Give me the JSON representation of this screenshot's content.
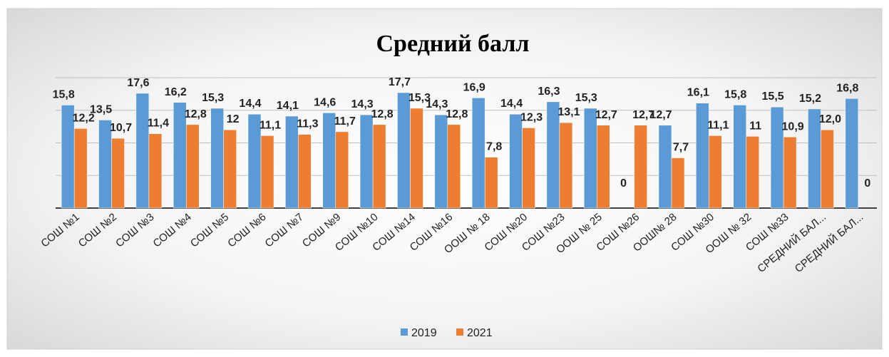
{
  "chart_data": {
    "type": "bar",
    "title": "Средний балл",
    "categories": [
      "СОШ №1",
      "СОШ №2",
      "СОШ №3",
      "СОШ №4",
      "СОШ №5",
      "СОШ №6",
      "СОШ №7",
      "СОШ №9",
      "СОШ №10",
      "СОШ №14",
      "СОШ №16",
      "ООШ № 18",
      "СОШ №20",
      "СОШ №23",
      "ООШ № 25",
      "СОШ №26",
      "ООШ№ 28",
      "СОШ №30",
      "ООШ № 32",
      "СОШ №33",
      "СРЕДНИЙ БАЛ...",
      "СРЕДНИЙ БАЛ..."
    ],
    "series": [
      {
        "name": "2019",
        "color": "#5b9bd5",
        "values": [
          15.8,
          13.5,
          17.6,
          16.2,
          15.3,
          14.4,
          14.1,
          14.6,
          14.3,
          17.7,
          14.3,
          16.9,
          14.4,
          16.3,
          15.3,
          0,
          12.7,
          16.1,
          15.8,
          15.5,
          15.2,
          16.8
        ],
        "value_labels": [
          "15,8",
          "13,5",
          "17,6",
          "16,2",
          "15,3",
          "14,4",
          "14,1",
          "14,6",
          "14,3",
          "17,7",
          "14,3",
          "16,9",
          "14,4",
          "16,3",
          "15,3",
          "0",
          "12,7",
          "16,1",
          "15,8",
          "15,5",
          "15,2",
          "16,8"
        ]
      },
      {
        "name": "2021",
        "color": "#ed7d31",
        "values": [
          12.2,
          10.7,
          11.4,
          12.8,
          12,
          11.1,
          11.3,
          11.7,
          12.8,
          15.3,
          12.8,
          7.8,
          12.3,
          13.1,
          12.7,
          12.7,
          7.7,
          11.1,
          11,
          10.9,
          12.0,
          0
        ],
        "value_labels": [
          "12,2",
          "10,7",
          "11,4",
          "12,8",
          "12",
          "11,1",
          "11,3",
          "11,7",
          "12,8",
          "15,3",
          "12,8",
          "7,8",
          "12,3",
          "13,1",
          "12,7",
          "12,7",
          "7,7",
          "11,1",
          "11",
          "10,9",
          "12,0",
          "0"
        ]
      }
    ],
    "ylim": [
      0,
      20
    ],
    "yticks": [
      0,
      5,
      10,
      15,
      20
    ],
    "grid": true,
    "legend": "bottom"
  }
}
